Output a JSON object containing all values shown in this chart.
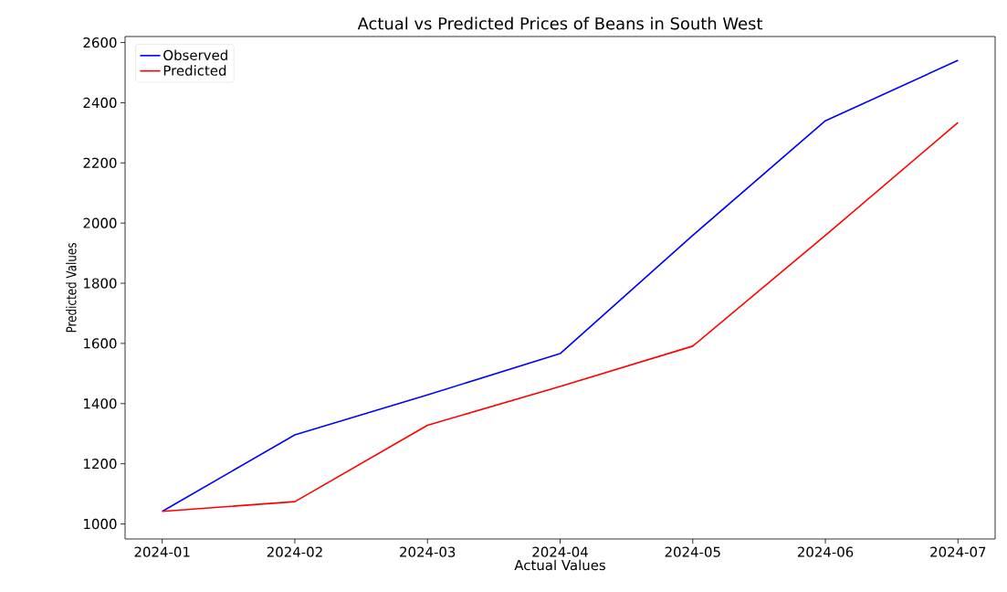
{
  "chart_data": {
    "type": "line",
    "title": "Actual vs Predicted Prices of Beans in South West",
    "xlabel": "Actual Values",
    "ylabel": "Predicted Values",
    "categories": [
      "2024-01",
      "2024-02",
      "2024-03",
      "2024-04",
      "2024-05",
      "2024-06",
      "2024-07"
    ],
    "series": [
      {
        "name": "Observed",
        "color": "#0000ff",
        "values": [
          1042,
          1296,
          1429,
          1566,
          1959,
          2340,
          2541
        ]
      },
      {
        "name": "Predicted",
        "color": "#ff0000",
        "values": [
          1042,
          1074,
          1328,
          1457,
          1591,
          1959,
          2334
        ]
      }
    ],
    "ylim": [
      950,
      2620
    ],
    "yticks": [
      1000,
      1200,
      1400,
      1600,
      1800,
      2000,
      2200,
      2400,
      2600
    ],
    "legend": "top left",
    "grid": false,
    "marker": "none",
    "line_style": "solid"
  }
}
